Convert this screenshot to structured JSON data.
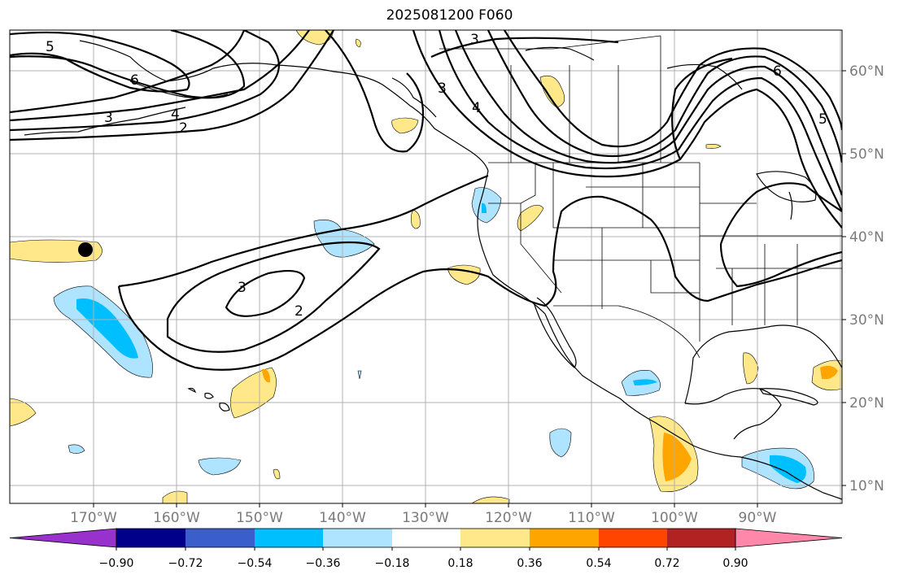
{
  "title": "2025081200 F060",
  "latitude_labels": [
    "60°N",
    "50°N",
    "40°N",
    "30°N",
    "20°N",
    "10°N"
  ],
  "longitude_labels": [
    "170°W",
    "160°W",
    "150°W",
    "140°W",
    "130°W",
    "120°W",
    "110°W",
    "100°W",
    "90°W"
  ],
  "contour_labels": [
    "5",
    "6",
    "3",
    "4",
    "2",
    "3",
    "3",
    "4",
    "6",
    "5",
    "3",
    "2"
  ],
  "colorbar": {
    "tick_labels": [
      "−0.90",
      "−0.72",
      "−0.54",
      "−0.36",
      "−0.18",
      "0.18",
      "0.36",
      "0.54",
      "0.72",
      "0.90"
    ],
    "colors": [
      "#9932cc",
      "#00008b",
      "#3a5fcd",
      "#00bfff",
      "#aee4ff",
      "#ffffff",
      "#ffe88a",
      "#ffa500",
      "#ff4500",
      "#b22222",
      "#ff88aa"
    ]
  },
  "marker": "black-dot"
}
